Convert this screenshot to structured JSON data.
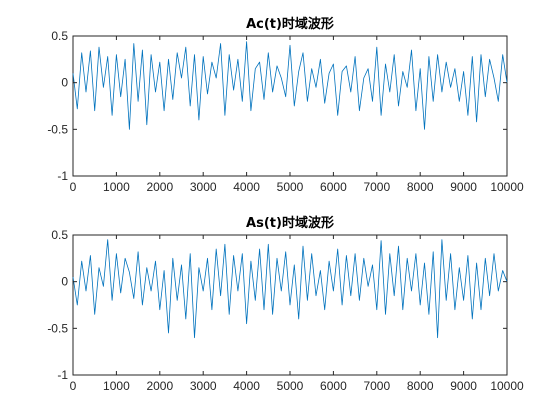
{
  "chart_data": [
    {
      "type": "line",
      "title": "Ac(t)时域波形",
      "xlabel": "",
      "ylabel": "",
      "xlim": [
        0,
        10000
      ],
      "ylim": [
        -1,
        0.5
      ],
      "xticks": [
        0,
        1000,
        2000,
        3000,
        4000,
        5000,
        6000,
        7000,
        8000,
        9000,
        10000
      ],
      "xtick_labels": [
        "0",
        "1000",
        "2000",
        "3000",
        "4000",
        "5000",
        "6000",
        "7000",
        "8000",
        "9000",
        "10000"
      ],
      "yticks": [
        -1,
        -0.5,
        0,
        0.5
      ],
      "ytick_labels": [
        "-1",
        "-0.5",
        "0",
        "0.5"
      ],
      "grid": false,
      "legend": "none",
      "color": "#0072BD",
      "series": [
        {
          "x": [
            0,
            100,
            200,
            300,
            400,
            500,
            600,
            700,
            800,
            900,
            1000,
            1100,
            1200,
            1300,
            1400,
            1500,
            1600,
            1700,
            1800,
            1900,
            2000,
            2100,
            2200,
            2300,
            2400,
            2500,
            2600,
            2700,
            2800,
            2900,
            3000,
            3100,
            3200,
            3300,
            3400,
            3500,
            3600,
            3700,
            3800,
            3900,
            4000,
            4100,
            4200,
            4300,
            4400,
            4500,
            4600,
            4700,
            4800,
            4900,
            5000,
            5100,
            5200,
            5300,
            5400,
            5500,
            5600,
            5700,
            5800,
            5900,
            6000,
            6100,
            6200,
            6300,
            6400,
            6500,
            6600,
            6700,
            6800,
            6900,
            7000,
            7100,
            7200,
            7300,
            7400,
            7500,
            7600,
            7700,
            7800,
            7900,
            8000,
            8100,
            8200,
            8300,
            8400,
            8500,
            8600,
            8700,
            8800,
            8900,
            9000,
            9100,
            9200,
            9300,
            9400,
            9500,
            9600,
            9700,
            9800,
            9900,
            10000
          ],
          "y": [
            0.1,
            -0.28,
            0.32,
            -0.1,
            0.34,
            -0.3,
            0.38,
            -0.05,
            0.28,
            -0.35,
            0.3,
            -0.15,
            0.25,
            -0.5,
            0.42,
            -0.2,
            0.35,
            -0.45,
            0.3,
            -0.1,
            0.22,
            -0.3,
            0.25,
            -0.18,
            0.32,
            0.05,
            0.38,
            -0.25,
            0.3,
            -0.4,
            0.28,
            -0.12,
            0.22,
            0.05,
            0.42,
            -0.35,
            0.3,
            -0.08,
            0.25,
            -0.2,
            0.44,
            -0.3,
            0.15,
            0.22,
            -0.18,
            0.32,
            -0.1,
            0.18,
            0.05,
            -0.15,
            0.4,
            -0.25,
            0.12,
            0.32,
            -0.2,
            0.15,
            -0.05,
            0.25,
            -0.22,
            0.1,
            0.2,
            -0.35,
            0.12,
            0.18,
            -0.1,
            0.28,
            -0.3,
            0.05,
            0.15,
            -0.2,
            0.38,
            -0.35,
            0.2,
            -0.1,
            0.3,
            -0.25,
            0.12,
            -0.05,
            0.35,
            -0.3,
            0.15,
            -0.5,
            0.28,
            -0.2,
            0.3,
            -0.1,
            0.22,
            -0.05,
            0.15,
            -0.2,
            0.12,
            -0.35,
            0.28,
            -0.42,
            0.3,
            -0.15,
            0.25,
            0.05,
            -0.2,
            0.3,
            0.0
          ]
        }
      ]
    },
    {
      "type": "line",
      "title": "As(t)时域波形",
      "xlabel": "",
      "ylabel": "",
      "xlim": [
        0,
        10000
      ],
      "ylim": [
        -1,
        0.5
      ],
      "xticks": [
        0,
        1000,
        2000,
        3000,
        4000,
        5000,
        6000,
        7000,
        8000,
        9000,
        10000
      ],
      "xtick_labels": [
        "0",
        "1000",
        "2000",
        "3000",
        "4000",
        "5000",
        "6000",
        "7000",
        "8000",
        "9000",
        "10000"
      ],
      "yticks": [
        -1,
        -0.5,
        0,
        0.5
      ],
      "ytick_labels": [
        "-1",
        "-0.5",
        "0",
        "0.5"
      ],
      "grid": false,
      "legend": "none",
      "color": "#0072BD",
      "series": [
        {
          "x": [
            0,
            100,
            200,
            300,
            400,
            500,
            600,
            700,
            800,
            900,
            1000,
            1100,
            1200,
            1300,
            1400,
            1500,
            1600,
            1700,
            1800,
            1900,
            2000,
            2100,
            2200,
            2300,
            2400,
            2500,
            2600,
            2700,
            2800,
            2900,
            3000,
            3100,
            3200,
            3300,
            3400,
            3500,
            3600,
            3700,
            3800,
            3900,
            4000,
            4100,
            4200,
            4300,
            4400,
            4500,
            4600,
            4700,
            4800,
            4900,
            5000,
            5100,
            5200,
            5300,
            5400,
            5500,
            5600,
            5700,
            5800,
            5900,
            6000,
            6100,
            6200,
            6300,
            6400,
            6500,
            6600,
            6700,
            6800,
            6900,
            7000,
            7100,
            7200,
            7300,
            7400,
            7500,
            7600,
            7700,
            7800,
            7900,
            8000,
            8100,
            8200,
            8300,
            8400,
            8500,
            8600,
            8700,
            8800,
            8900,
            9000,
            9100,
            9200,
            9300,
            9400,
            9500,
            9600,
            9700,
            9800,
            9900,
            10000
          ],
          "y": [
            0.05,
            -0.25,
            0.22,
            -0.1,
            0.28,
            -0.35,
            0.15,
            -0.05,
            0.45,
            -0.2,
            0.3,
            -0.12,
            0.25,
            0.1,
            -0.18,
            0.32,
            -0.25,
            0.15,
            -0.1,
            0.22,
            -0.3,
            0.12,
            -0.55,
            0.25,
            -0.2,
            0.18,
            -0.4,
            0.3,
            -0.6,
            0.15,
            -0.1,
            0.25,
            -0.3,
            0.35,
            -0.15,
            0.4,
            -0.35,
            0.28,
            -0.1,
            0.3,
            -0.45,
            0.22,
            -0.2,
            0.35,
            -0.3,
            0.4,
            -0.35,
            0.25,
            -0.1,
            0.32,
            -0.25,
            0.18,
            -0.4,
            0.38,
            -0.2,
            0.3,
            -0.15,
            0.12,
            -0.3,
            0.22,
            -0.1,
            0.35,
            -0.25,
            0.28,
            -0.15,
            0.3,
            -0.2,
            0.25,
            -0.05,
            0.18,
            -0.3,
            0.44,
            -0.35,
            0.3,
            -0.15,
            0.38,
            -0.3,
            0.25,
            -0.1,
            0.3,
            -0.25,
            0.2,
            -0.35,
            0.32,
            -0.6,
            0.45,
            -0.2,
            0.3,
            -0.3,
            0.15,
            -0.2,
            0.28,
            -0.4,
            0.2,
            -0.3,
            0.25,
            -0.15,
            0.3,
            -0.1,
            0.12,
            0.0
          ]
        }
      ]
    }
  ]
}
